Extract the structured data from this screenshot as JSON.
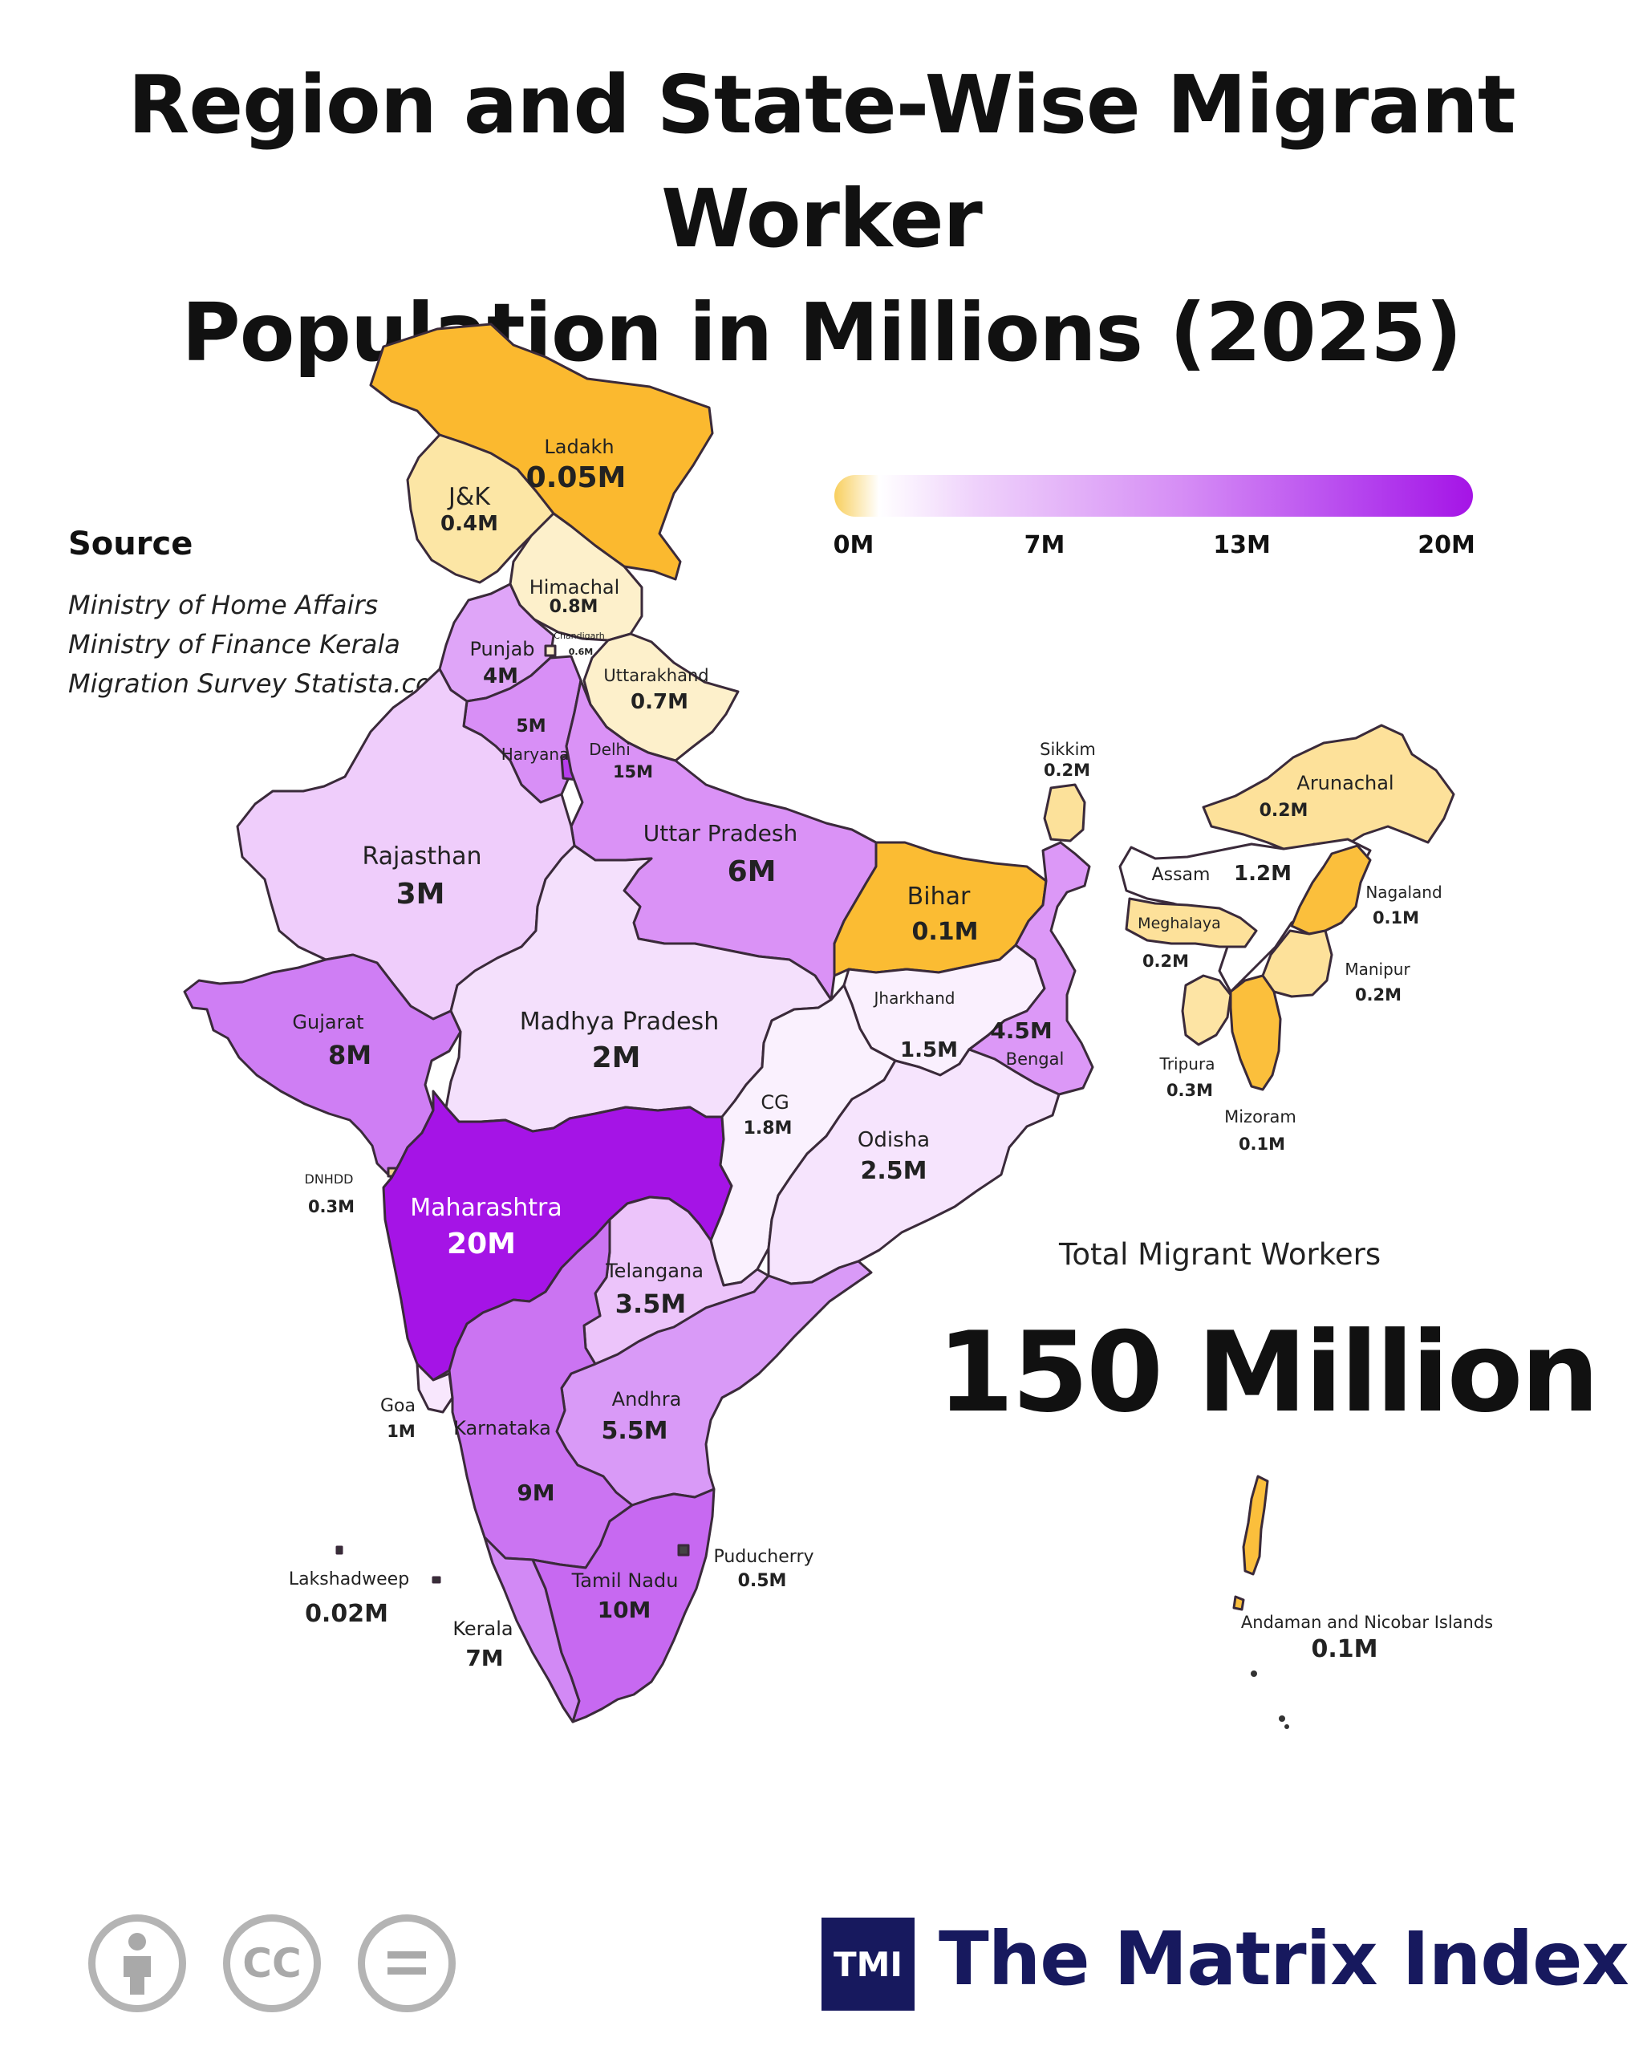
{
  "title": {
    "line1": "Region and State-Wise Migrant Worker",
    "line2": "Population in Millions (2025)"
  },
  "source": {
    "heading": "Source",
    "items": [
      "Ministry of Home Affairs",
      "Ministry of Finance Kerala",
      "Migration Survey Statista.com"
    ]
  },
  "legend": {
    "ticks": [
      "0M",
      "7M",
      "13M",
      "20M"
    ],
    "colors": {
      "low": "#f8cf5e",
      "mid": "#d58cf5",
      "high": "#a514e6"
    }
  },
  "total": {
    "label": "Total Migrant Workers",
    "value": "150 Million"
  },
  "regions": [
    {
      "id": "ladakh",
      "name": "Ladakh",
      "value": "0.05M",
      "color": "#fbb92f"
    },
    {
      "id": "jk",
      "name": "J&K",
      "value": "0.4M",
      "color": "#fce6a5"
    },
    {
      "id": "himachal",
      "name": "Himachal",
      "value": "0.8M",
      "color": "#fdf0cb"
    },
    {
      "id": "chandigarh",
      "name": "Chandigarh",
      "value": "0.6M",
      "color": "#fdf0cb"
    },
    {
      "id": "uttarakhand",
      "name": "Uttarakhand",
      "value": "0.7M",
      "color": "#fdf0cb"
    },
    {
      "id": "punjab",
      "name": "Punjab",
      "value": "4M",
      "color": "#dfa5f8"
    },
    {
      "id": "haryana",
      "name": "Haryana",
      "value": "5M",
      "color": "#d88ff6"
    },
    {
      "id": "delhi",
      "name": "Delhi",
      "value": "15M",
      "color": "#b63ded"
    },
    {
      "id": "uttar-pradesh",
      "name": "Uttar Pradesh",
      "value": "6M",
      "color": "#da92f6"
    },
    {
      "id": "rajasthan",
      "name": "Rajasthan",
      "value": "3M",
      "color": "#efcdfb"
    },
    {
      "id": "madhya-pradesh",
      "name": "Madhya Pradesh",
      "value": "2M",
      "color": "#f4e0fc"
    },
    {
      "id": "bihar",
      "name": "Bihar",
      "value": "0.1M",
      "color": "#fbbc33"
    },
    {
      "id": "jharkhand",
      "name": "Jharkhand",
      "value": "1.5M",
      "color": "#faf0fe"
    },
    {
      "id": "bengal",
      "name": "Bengal",
      "value": "4.5M",
      "color": "#dc98f7"
    },
    {
      "id": "sikkim",
      "name": "Sikkim",
      "value": "0.2M",
      "color": "#fce19a"
    },
    {
      "id": "gujarat",
      "name": "Gujarat",
      "value": "8M",
      "color": "#cf7ef4"
    },
    {
      "id": "dnhdd",
      "name": "DNHDD",
      "value": "0.3M",
      "color": "#f2d591"
    },
    {
      "id": "maharashtra",
      "name": "Maharashtra",
      "value": "20M",
      "color": "#a514e6"
    },
    {
      "id": "cg",
      "name": "CG",
      "value": "1.8M",
      "color": "#faf1fe"
    },
    {
      "id": "odisha",
      "name": "Odisha",
      "value": "2.5M",
      "color": "#f6e4fd"
    },
    {
      "id": "telangana",
      "name": "Telangana",
      "value": "3.5M",
      "color": "#ecc4fa"
    },
    {
      "id": "andhra",
      "name": "Andhra",
      "value": "5.5M",
      "color": "#d99af7"
    },
    {
      "id": "goa",
      "name": "Goa",
      "value": "1M",
      "color": "#f8e7fd"
    },
    {
      "id": "karnataka",
      "name": "Karnataka",
      "value": "9M",
      "color": "#cb74f2"
    },
    {
      "id": "kerala",
      "name": "Kerala",
      "value": "7M",
      "color": "#d289f5"
    },
    {
      "id": "tamil-nadu",
      "name": "Tamil Nadu",
      "value": "10M",
      "color": "#c769f1"
    },
    {
      "id": "puducherry",
      "name": "Puducherry",
      "value": "0.5M",
      "color": "#444444"
    },
    {
      "id": "lakshadweep",
      "name": "Lakshadweep",
      "value": "0.02M",
      "color": "#333333"
    },
    {
      "id": "arunachal",
      "name": "Arunachal",
      "value": "0.2M",
      "color": "#fde19a"
    },
    {
      "id": "assam",
      "name": "Assam",
      "value": "1.2M",
      "color": "#ffffff"
    },
    {
      "id": "meghalaya",
      "name": "Meghalaya",
      "value": "0.2M",
      "color": "#fde19a"
    },
    {
      "id": "nagaland",
      "name": "Nagaland",
      "value": "0.1M",
      "color": "#fbbf3c"
    },
    {
      "id": "manipur",
      "name": "Manipur",
      "value": "0.2M",
      "color": "#fde19a"
    },
    {
      "id": "tripura",
      "name": "Tripura",
      "value": "0.3M",
      "color": "#fde4a4"
    },
    {
      "id": "mizoram",
      "name": "Mizoram",
      "value": "0.1M",
      "color": "#fbbf3c"
    },
    {
      "id": "andaman",
      "name": "Andaman and Nicobar Islands",
      "value": "0.1M",
      "color": "#fbbf3c"
    }
  ],
  "license_icons": [
    "attribution-icon",
    "cc-icon",
    "no-derivatives-icon"
  ],
  "license_glyphs": {
    "cc": "CC"
  },
  "brand": {
    "logo_text": "TMI",
    "name": "The Matrix Index",
    "color": "#17195e"
  }
}
